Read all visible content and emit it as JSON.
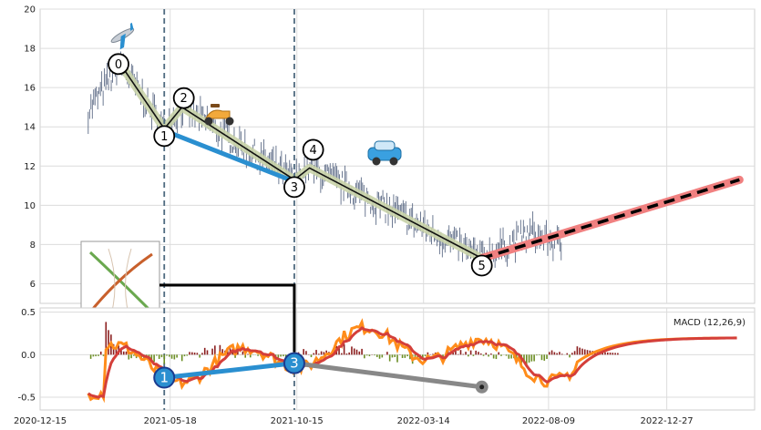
{
  "chart_data": {
    "type": "line",
    "subtype": "pattern-annotated price chart with MACD subpanel",
    "price_panel": {
      "ylim": [
        5,
        20
      ],
      "yticks": [
        "6",
        "8",
        "10",
        "12",
        "14",
        "16",
        "18",
        "20"
      ],
      "grid": true,
      "price_series_color": "#4a5a78",
      "pivots": [
        {
          "label": "0",
          "date": "2021-03-20",
          "value": 17.2
        },
        {
          "label": "1",
          "date": "2021-05-11",
          "value": 13.9
        },
        {
          "label": "2",
          "date": "2021-06-01",
          "value": 15.0
        },
        {
          "label": "3",
          "date": "2021-10-12",
          "value": 11.3
        },
        {
          "label": "4",
          "date": "2021-10-30",
          "value": 11.9
        },
        {
          "label": "5",
          "date": "2022-05-22",
          "value": 7.3
        }
      ],
      "projection": {
        "from": {
          "date": "2022-05-22",
          "value": 7.3
        },
        "to": {
          "date": "2023-03-23",
          "value": 11.3
        },
        "color": "#f08080"
      },
      "icons": [
        "airplane-icon",
        "scooter-icon",
        "car-icon",
        "pattern-thumbnail-icon"
      ]
    },
    "macd_panel": {
      "title": "MACD (12,26,9)",
      "ylim": [
        -0.65,
        0.55
      ],
      "yticks": [
        "-0.5",
        "0.0",
        "0.5"
      ],
      "macd_color": "#ff8c1a",
      "signal_color": "#d43f3a",
      "hist_pos_color": "#8b1e1e",
      "hist_neg_color": "#6b8e23",
      "markers": [
        {
          "label": "1",
          "date": "2021-05-11",
          "value": -0.27
        },
        {
          "label": "3",
          "date": "2021-10-12",
          "value": -0.1
        },
        {
          "label": "",
          "date": "2022-05-22",
          "value": -0.38
        }
      ]
    },
    "x_axis": {
      "xlim": [
        "2020-12-15",
        "2023-04-10"
      ],
      "ticks": [
        {
          "date": "2020-12-15",
          "label": "2020-12-15"
        },
        {
          "date": "2021-05-18",
          "label": "2021-05-18"
        },
        {
          "date": "2021-10-15",
          "label": "2021-10-15"
        },
        {
          "date": "2022-03-14",
          "label": "2022-03-14"
        },
        {
          "date": "2022-08-09",
          "label": "2022-08-09"
        },
        {
          "date": "2022-12-27",
          "label": "2022-12-27"
        }
      ]
    },
    "vlines": [
      "2021-05-11",
      "2021-10-12"
    ]
  }
}
